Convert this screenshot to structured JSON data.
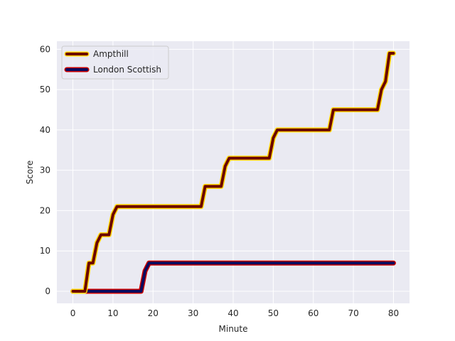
{
  "chart_data": {
    "type": "line",
    "title": "",
    "xlabel": "Minute",
    "ylabel": "Score",
    "xlim": [
      -4,
      84
    ],
    "ylim": [
      -3,
      62
    ],
    "x_ticks": [
      0,
      10,
      20,
      30,
      40,
      50,
      60,
      70,
      80
    ],
    "y_ticks": [
      0,
      10,
      20,
      30,
      40,
      50,
      60
    ],
    "grid": true,
    "legend_position": "top-left",
    "background": "#eaeaf2",
    "series": [
      {
        "name": "Ampthill",
        "line_color": "#6b0000",
        "edge_color": "#ffd700",
        "x": [
          0,
          3,
          4,
          5,
          6,
          7,
          9,
          10,
          11,
          32,
          33,
          37,
          38,
          39,
          49,
          50,
          51,
          64,
          65,
          76,
          77,
          78,
          79,
          80
        ],
        "y": [
          0,
          0,
          7,
          7,
          12,
          14,
          14,
          19,
          21,
          21,
          26,
          26,
          31,
          33,
          33,
          38,
          40,
          40,
          45,
          45,
          50,
          52,
          59,
          59
        ]
      },
      {
        "name": "London Scottish",
        "line_color": "#0a0a5e",
        "edge_color": "#cc0000",
        "x": [
          0,
          17,
          18,
          19,
          80
        ],
        "y": [
          0,
          0,
          5,
          7,
          7
        ]
      }
    ]
  }
}
